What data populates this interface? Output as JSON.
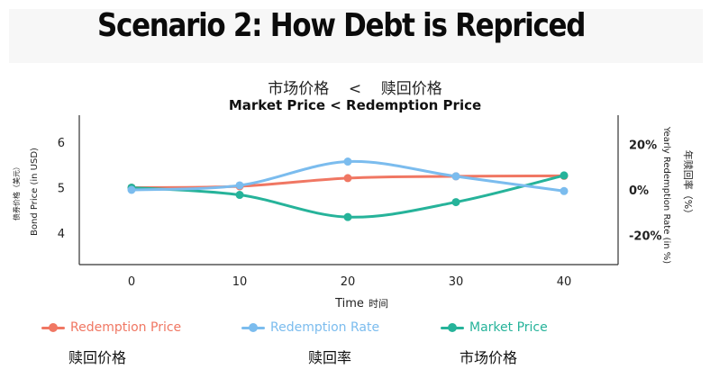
{
  "slide": {
    "title": "Scenario 2: How Debt is Repriced"
  },
  "chart_data": {
    "type": "line",
    "title": "Market Price < Redemption Price",
    "title_cn": "市场价格    <    赎回价格",
    "x": [
      0,
      10,
      20,
      30,
      40
    ],
    "xlabel": "Time",
    "xlabel_cn": "时间",
    "ylabel": "Bond Price (in USD)",
    "ylabel_cn": "债券价格（美元）",
    "y2label": "Yearly Redemption Rate (in %)",
    "y2label_cn": "年赎回率（%）",
    "ylim": [
      3.3,
      6.6
    ],
    "y2lim": [
      -33,
      33
    ],
    "yticks": [
      4,
      5,
      6
    ],
    "y2ticks": [
      "20%",
      "0%",
      "-20%"
    ],
    "y2tick_values": [
      20,
      0,
      -20
    ],
    "series": [
      {
        "name": "Redemption Price",
        "name_cn": "赎回价格",
        "axis": "left",
        "color": "#f07763",
        "values": [
          5.0,
          5.03,
          5.21,
          5.25,
          5.26
        ]
      },
      {
        "name": "Redemption Rate",
        "name_cn": "赎回率",
        "axis": "right",
        "color": "#7bbcee",
        "values": [
          0,
          2,
          12.5,
          6,
          -0.5
        ]
      },
      {
        "name": "Market Price",
        "name_cn": "市场价格",
        "axis": "left",
        "color": "#26b39a",
        "values": [
          5.0,
          4.84,
          4.35,
          4.68,
          5.27
        ]
      }
    ],
    "grid": false,
    "legend": "bottom"
  }
}
